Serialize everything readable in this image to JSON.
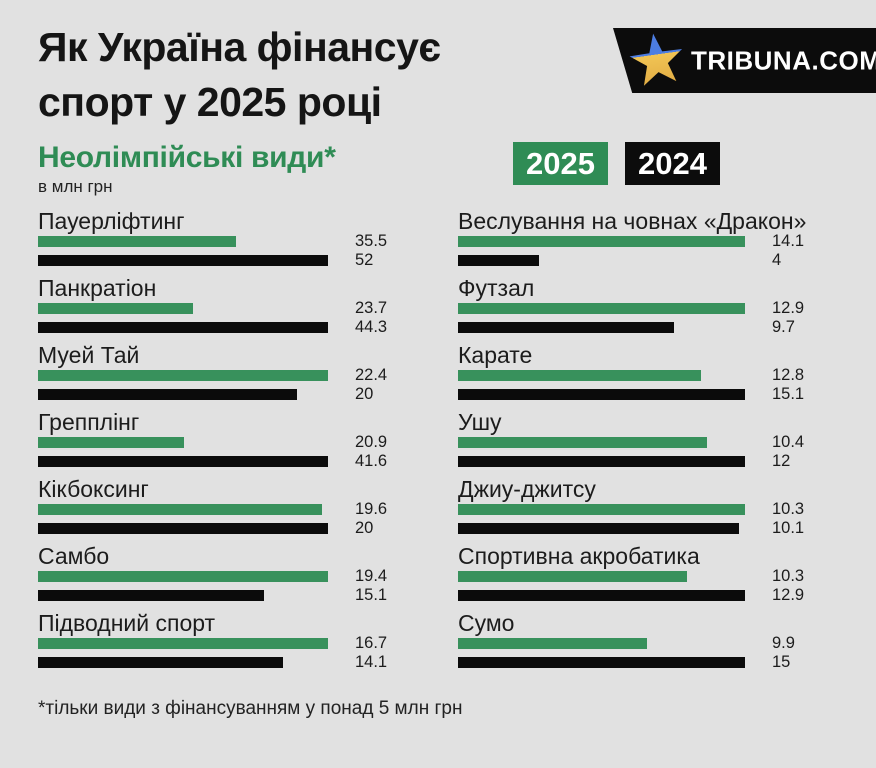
{
  "header": {
    "title_line1": "Як Україна фінансує",
    "title_line2": "спорт у 2025 році",
    "subtitle": "Неолімпійські види*",
    "unit_label": "в млн грн",
    "logo_text": "TRIBUNA.COM"
  },
  "legend": {
    "label_2025": "2025",
    "label_2024": "2024"
  },
  "footnote": "*тільки види з фінансуванням у понад 5 млн грн",
  "colors": {
    "background": "#E1E1E1",
    "bar_green_2025": "#38915C",
    "bar_black_2024": "#0B0B0B",
    "badge_green": "#2F8C55",
    "badge_black": "#0C0C0C",
    "subtitle_green": "#2F8C55",
    "star_blue": "#4C7DE2",
    "star_yellow": "#F1C454"
  },
  "chart_data": {
    "type": "bar",
    "title": "Як Україна фінансує спорт у 2025 році",
    "subtitle": "Неолімпійські види (в млн грн)",
    "unit": "млн грн",
    "legend": [
      "2025",
      "2024"
    ],
    "legend_position": "top-right",
    "orientation": "horizontal",
    "scale_note": "each pair of bars is scaled relative to the larger value of the pair",
    "columns": [
      {
        "rows": [
          {
            "sport": "Пауерліфтинг",
            "y2025": 35.5,
            "y2024": 52
          },
          {
            "sport": "Панкратіон",
            "y2025": 23.7,
            "y2024": 44.3
          },
          {
            "sport": "Муей Тай",
            "y2025": 22.4,
            "y2024": 20
          },
          {
            "sport": "Грепплінг",
            "y2025": 20.9,
            "y2024": 41.6
          },
          {
            "sport": "Кікбоксинг",
            "y2025": 19.6,
            "y2024": 20
          },
          {
            "sport": "Самбо",
            "y2025": 19.4,
            "y2024": 15.1
          },
          {
            "sport": "Підводний спорт",
            "y2025": 16.7,
            "y2024": 14.1
          }
        ]
      },
      {
        "rows": [
          {
            "sport": "Веслування на човнах «Дракон»",
            "y2025": 14.1,
            "y2024": 4
          },
          {
            "sport": "Футзал",
            "y2025": 12.9,
            "y2024": 9.7
          },
          {
            "sport": "Карате",
            "y2025": 12.8,
            "y2024": 15.1
          },
          {
            "sport": "Ушу",
            "y2025": 10.4,
            "y2024": 12
          },
          {
            "sport": "Джиу-джитсу",
            "y2025": 10.3,
            "y2024": 10.1
          },
          {
            "sport": "Спортивна акробатика",
            "y2025": 10.3,
            "y2024": 12.9
          },
          {
            "sport": "Сумо",
            "y2025": 9.9,
            "y2024": 15
          }
        ]
      }
    ]
  }
}
